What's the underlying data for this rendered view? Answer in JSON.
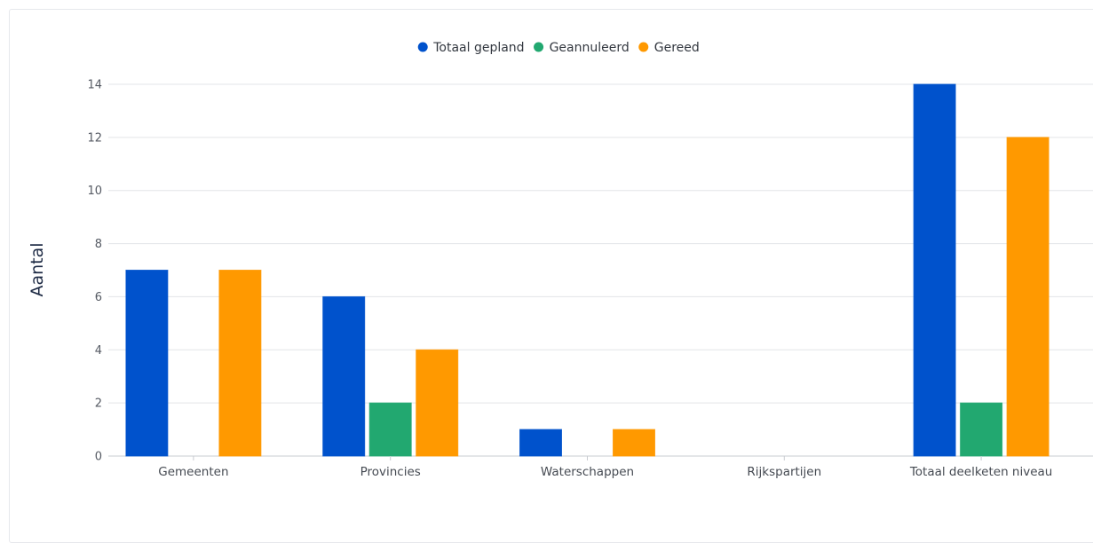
{
  "chart_data": {
    "type": "bar",
    "title": "",
    "xlabel": "",
    "ylabel": "Aantal",
    "ylim": [
      0,
      14
    ],
    "yticks": [
      0,
      2,
      4,
      6,
      8,
      10,
      12,
      14
    ],
    "grid": true,
    "legend_position": "top-center",
    "categories": [
      "Gemeenten",
      "Provincies",
      "Waterschappen",
      "Rijkspartijen",
      "Totaal deelketen niveau"
    ],
    "series": [
      {
        "name": "Totaal gepland",
        "color": "#0052cc",
        "values": [
          7,
          6,
          1,
          0,
          14
        ]
      },
      {
        "name": "Geannuleerd",
        "color": "#22a870",
        "values": [
          0,
          2,
          0,
          0,
          2
        ]
      },
      {
        "name": "Gereed",
        "color": "#ff9900",
        "values": [
          7,
          4,
          1,
          0,
          12
        ]
      }
    ]
  }
}
